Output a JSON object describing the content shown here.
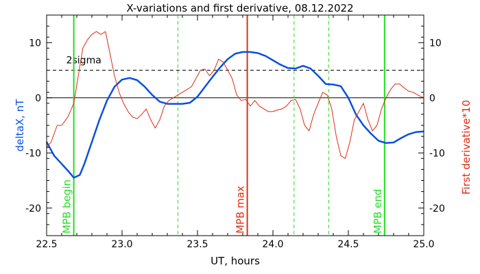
{
  "chart_data": {
    "type": "line",
    "title": "X-variations and first derivative, 08.12.2022",
    "xlabel": "UT, hours",
    "ylabel_left": "deltaX, nT",
    "ylabel_right": "First derivative*10",
    "xlim": [
      22.5,
      25.0
    ],
    "ylim": [
      -25,
      15
    ],
    "x_ticks": [
      22.5,
      23.0,
      23.5,
      24.0,
      24.5,
      25.0
    ],
    "x_tick_labels": [
      "22.5",
      "23.0",
      "23.5",
      "24.0",
      "24.5",
      "25.0"
    ],
    "y_ticks": [
      -20,
      -10,
      0,
      10
    ],
    "y_tick_labels": [
      "-20",
      "-10",
      "0",
      "10"
    ],
    "colors": {
      "deltaX": "#0a4fe0",
      "derivative": "#dd2a10",
      "mpb_boundary": "#22dd22",
      "mpb_max": "#e03010",
      "threshold": "#000000"
    },
    "threshold": {
      "value": 5,
      "label": "2sigma"
    },
    "zero_line": 0,
    "markers": [
      {
        "x": 22.68,
        "label": "MPB begin",
        "style": "solid",
        "color_key": "mpb_boundary"
      },
      {
        "x": 23.83,
        "label": "MPB max",
        "style": "solid",
        "color_key": "mpb_max"
      },
      {
        "x": 24.74,
        "label": "MPB end",
        "style": "solid",
        "color_key": "mpb_boundary"
      }
    ],
    "dashed_markers": [
      {
        "x": 23.37
      },
      {
        "x": 24.14
      },
      {
        "x": 24.37
      }
    ],
    "series": [
      {
        "name": "deltaX, nT",
        "axis": "left",
        "color_key": "deltaX",
        "x": [
          22.5,
          22.55,
          22.6,
          22.65,
          22.68,
          22.72,
          22.75,
          22.8,
          22.85,
          22.9,
          22.95,
          23.0,
          23.05,
          23.1,
          23.15,
          23.2,
          23.25,
          23.3,
          23.35,
          23.4,
          23.45,
          23.5,
          23.55,
          23.6,
          23.65,
          23.7,
          23.75,
          23.8,
          23.85,
          23.9,
          23.95,
          24.0,
          24.05,
          24.1,
          24.15,
          24.2,
          24.25,
          24.3,
          24.35,
          24.4,
          24.45,
          24.5,
          24.55,
          24.6,
          24.65,
          24.7,
          24.75,
          24.8,
          24.85,
          24.9,
          24.95,
          25.0
        ],
        "y": [
          -8,
          -10.5,
          -12,
          -13.5,
          -14.5,
          -14,
          -12,
          -8,
          -4,
          -0.5,
          2,
          3.3,
          3.6,
          3.2,
          2,
          0.5,
          -0.7,
          -1.1,
          -1.1,
          -1.1,
          -0.9,
          0.2,
          2,
          3.8,
          5.5,
          7,
          8,
          8.3,
          8.3,
          8.1,
          7.6,
          6.8,
          6,
          5.4,
          5.3,
          5.8,
          5.3,
          4,
          2.5,
          2.4,
          2.1,
          0,
          -3,
          -5,
          -6.5,
          -7.8,
          -8.2,
          -8.1,
          -7.3,
          -6.6,
          -6.2,
          -6.1
        ]
      },
      {
        "name": "First derivative*10",
        "axis": "right",
        "color_key": "derivative",
        "x": [
          22.5,
          22.53,
          22.57,
          22.6,
          22.64,
          22.68,
          22.71,
          22.74,
          22.77,
          22.8,
          22.83,
          22.86,
          22.89,
          22.92,
          22.95,
          22.98,
          23.01,
          23.04,
          23.07,
          23.1,
          23.13,
          23.16,
          23.19,
          23.22,
          23.25,
          23.28,
          23.31,
          23.34,
          23.37,
          23.4,
          23.43,
          23.46,
          23.49,
          23.52,
          23.55,
          23.58,
          23.61,
          23.64,
          23.67,
          23.7,
          23.73,
          23.76,
          23.79,
          23.82,
          23.85,
          23.88,
          23.91,
          23.94,
          23.97,
          24.0,
          24.03,
          24.06,
          24.09,
          24.12,
          24.15,
          24.18,
          24.21,
          24.24,
          24.27,
          24.3,
          24.33,
          24.36,
          24.39,
          24.42,
          24.45,
          24.48,
          24.51,
          24.54,
          24.57,
          24.6,
          24.63,
          24.66,
          24.69,
          24.72,
          24.75,
          24.78,
          24.81,
          24.84,
          24.87,
          24.9,
          24.93,
          24.96,
          25.0
        ],
        "y": [
          -9,
          -8,
          -5,
          -5,
          -3.5,
          -1,
          4,
          9,
          10.5,
          11.5,
          12,
          11.5,
          12,
          8,
          4,
          1,
          -1,
          -2.5,
          -3.5,
          -3.8,
          -3,
          -2,
          -4,
          -5.5,
          -4,
          -1.5,
          -0.5,
          0,
          0.5,
          1,
          1.5,
          2,
          3.5,
          5,
          5.2,
          4,
          5,
          7,
          6.5,
          5,
          3.5,
          0.5,
          -0.5,
          -0.3,
          -1.5,
          -0.5,
          -1.5,
          -2,
          -2.5,
          -2.5,
          -2.2,
          -2,
          -1.5,
          -0.5,
          -0.3,
          -2,
          -5,
          -6,
          -3,
          -1,
          1,
          0.5,
          -2,
          -7,
          -10.5,
          -11,
          -8,
          -4,
          -2.5,
          -1,
          -4,
          -6,
          -5,
          -2,
          0,
          1.5,
          2.5,
          2.5,
          1.8,
          1.2,
          1,
          0.5,
          0
        ]
      }
    ]
  }
}
